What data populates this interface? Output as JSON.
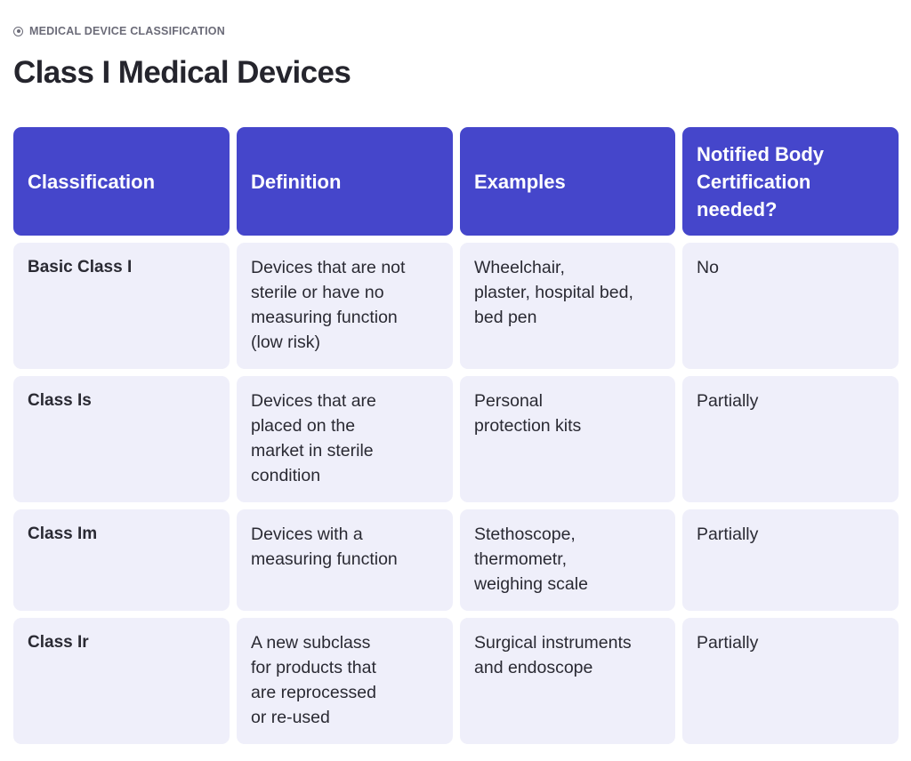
{
  "eyebrow": {
    "icon": "circle-dot-icon",
    "label": "MEDICAL DEVICE CLASSIFICATION"
  },
  "page_title": "Class I Medical Devices",
  "colors": {
    "header_bg": "#4546cb",
    "cell_bg": "#efeffa",
    "text": "#2a2a33",
    "eyebrow": "#6b6b78"
  },
  "table": {
    "headers": [
      "Classification",
      "Definition",
      "Examples",
      "Notified Body\nCertification\nneeded?"
    ],
    "rows": [
      {
        "classification": "Basic Class I",
        "definition": "Devices that are not\nsterile or have no\nmeasuring function\n(low risk)",
        "examples": "Wheelchair,\nplaster, hospital bed,\nbed pen",
        "certification": "No"
      },
      {
        "classification": "Class Is",
        "definition": "Devices that are\nplaced on the\nmarket in sterile\ncondition",
        "examples": "Personal\nprotection kits",
        "certification": "Partially"
      },
      {
        "classification": "Class Im",
        "definition": "Devices with a\nmeasuring function",
        "examples": "Stethoscope,\nthermometr,\nweighing scale",
        "certification": "Partially"
      },
      {
        "classification": "Class Ir",
        "definition": "A new subclass\nfor products that\nare reprocessed\nor re-used",
        "examples": "Surgical instruments\nand endoscope",
        "certification": "Partially"
      }
    ]
  }
}
